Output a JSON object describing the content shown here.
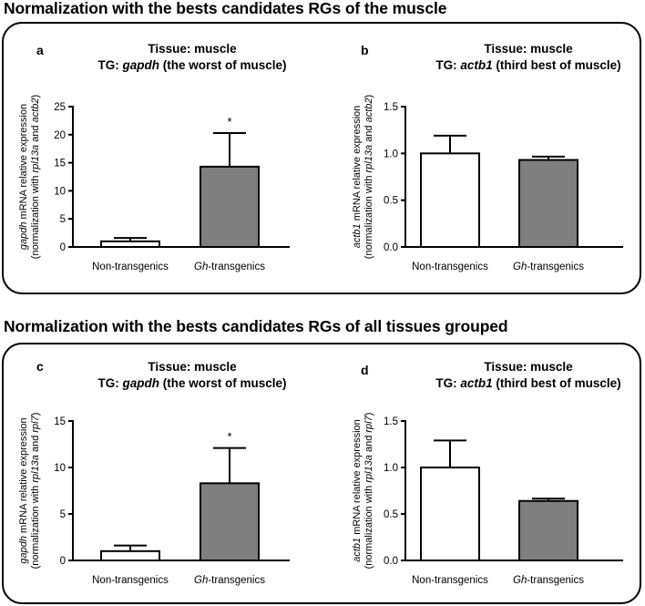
{
  "sections": [
    {
      "title": "Normalization with the bests candidates RGs of the muscle"
    },
    {
      "title": "Normalization with the bests candidates RGs of all tissues grouped"
    }
  ],
  "chart_data": [
    {
      "type": "bar",
      "panel_letter": "a",
      "title_line1": "Tissue: muscle",
      "title_prefix": "TG: ",
      "title_gene": "gapdh",
      "title_suffix": " (the worst of muscle)",
      "ylabel_gene": "gapdh",
      "ylabel_line1_rest": " mRNA relative expression",
      "ylabel_line2_prefix": "(normalization with ",
      "ylabel_ref1": "rpl13a",
      "ylabel_and": " and ",
      "ylabel_ref2": "actb2",
      "ylabel_line2_suffix": ")",
      "ylim": [
        0,
        25
      ],
      "yticks": [
        "0",
        "5",
        "10",
        "15",
        "20",
        "25"
      ],
      "tick_values": [
        0,
        5,
        10,
        15,
        20,
        25
      ],
      "categories": [
        {
          "italic": "",
          "plain": "Non-transgenics"
        },
        {
          "italic": "Gh",
          "plain": "-transgenics"
        }
      ],
      "values": [
        1.0,
        14.3
      ],
      "errors": [
        0.6,
        6.0
      ],
      "colors": [
        "#ffffff",
        "#7f7f7f"
      ],
      "significance": [
        "",
        "*"
      ]
    },
    {
      "type": "bar",
      "panel_letter": "b",
      "title_line1": "Tissue: muscle",
      "title_prefix": "TG: ",
      "title_gene": "actb1",
      "title_suffix": " (third best of muscle)",
      "ylabel_gene": "actb1",
      "ylabel_line1_rest": " mRNA relative expression",
      "ylabel_line2_prefix": "(normalization with ",
      "ylabel_ref1": "rpl13a",
      "ylabel_and": " and ",
      "ylabel_ref2": "actb2",
      "ylabel_line2_suffix": ")",
      "ylim": [
        0,
        1.5
      ],
      "yticks": [
        "0.0",
        "0.5",
        "1.0",
        "1.5"
      ],
      "tick_values": [
        0,
        0.5,
        1.0,
        1.5
      ],
      "categories": [
        {
          "italic": "",
          "plain": "Non-transgenics"
        },
        {
          "italic": "Gh",
          "plain": "-transgenics"
        }
      ],
      "values": [
        1.0,
        0.93
      ],
      "errors": [
        0.19,
        0.035
      ],
      "colors": [
        "#ffffff",
        "#7f7f7f"
      ],
      "significance": [
        "",
        ""
      ]
    },
    {
      "type": "bar",
      "panel_letter": "c",
      "title_line1": "Tissue: muscle",
      "title_prefix": "TG: ",
      "title_gene": "gapdh",
      "title_suffix": " (the worst of muscle)",
      "ylabel_gene": "gapdh",
      "ylabel_line1_rest": " mRNA relative expression",
      "ylabel_line2_prefix": "(normalization with ",
      "ylabel_ref1": "rpl13a",
      "ylabel_and": " and ",
      "ylabel_ref2": "rpl7",
      "ylabel_line2_suffix": ")",
      "ylim": [
        0,
        15
      ],
      "yticks": [
        "0",
        "5",
        "10",
        "15"
      ],
      "tick_values": [
        0,
        5,
        10,
        15
      ],
      "categories": [
        {
          "italic": "",
          "plain": "Non-transgenics"
        },
        {
          "italic": "Gh",
          "plain": "-transgenics"
        }
      ],
      "values": [
        1.0,
        8.3
      ],
      "errors": [
        0.6,
        3.8
      ],
      "colors": [
        "#ffffff",
        "#7f7f7f"
      ],
      "significance": [
        "",
        "*"
      ]
    },
    {
      "type": "bar",
      "panel_letter": "d",
      "title_line1": "Tissue: muscle",
      "title_prefix": "TG: ",
      "title_gene": "actb1",
      "title_suffix": " (third best of muscle)",
      "ylabel_gene": "actb1",
      "ylabel_line1_rest": " mRNA relative expression",
      "ylabel_line2_prefix": "(normalization with ",
      "ylabel_ref1": "rpl13a",
      "ylabel_and": " and ",
      "ylabel_ref2": "rpl7",
      "ylabel_line2_suffix": ")",
      "ylim": [
        0,
        1.5
      ],
      "yticks": [
        "0.0",
        "0.5",
        "1.0",
        "1.5"
      ],
      "tick_values": [
        0,
        0.5,
        1.0,
        1.5
      ],
      "categories": [
        {
          "italic": "",
          "plain": "Non-transgenics"
        },
        {
          "italic": "Gh",
          "plain": "-transgenics"
        }
      ],
      "values": [
        1.0,
        0.64
      ],
      "errors": [
        0.29,
        0.025
      ],
      "colors": [
        "#ffffff",
        "#7f7f7f"
      ],
      "significance": [
        "",
        ""
      ]
    }
  ]
}
